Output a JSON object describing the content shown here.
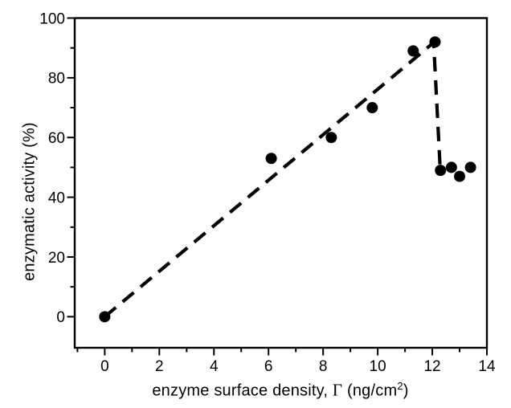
{
  "chart_data": {
    "type": "scatter",
    "title": "",
    "xlabel": {
      "prefix": "enzyme surface density, ",
      "symbol": "Γ",
      "unit_open": " (ng/cm",
      "superscript": "2",
      "unit_close": ")"
    },
    "ylabel": "enzymatic activity (%)",
    "xlim": [
      -1.1,
      14
    ],
    "ylim": [
      -10.4,
      100
    ],
    "x_major_ticks": [
      0,
      2,
      4,
      6,
      8,
      10,
      12,
      14
    ],
    "x_minor_ticks": [
      -1,
      1,
      3,
      5,
      7,
      9,
      11,
      13
    ],
    "y_major_ticks": [
      0,
      20,
      40,
      60,
      80,
      100
    ],
    "y_minor_ticks": [
      10,
      30,
      50,
      70,
      90
    ],
    "grid": false,
    "legend": null,
    "background_color": "#ffffff",
    "axis_color": "#000000",
    "series": [
      {
        "name": "enzymatic activity",
        "marker": "filled-circle",
        "color": "#000000",
        "points": [
          [
            0,
            0
          ],
          [
            6.1,
            53
          ],
          [
            8.3,
            60
          ],
          [
            9.8,
            70
          ],
          [
            11.3,
            89
          ],
          [
            12.1,
            92
          ],
          [
            12.3,
            49
          ],
          [
            12.7,
            50
          ],
          [
            13.0,
            47
          ],
          [
            13.4,
            50
          ]
        ]
      }
    ],
    "trend_line": {
      "style": "dashed",
      "color": "#000000",
      "points": [
        [
          0,
          0
        ],
        [
          12.05,
          91.8
        ],
        [
          12.28,
          51
        ]
      ]
    }
  }
}
